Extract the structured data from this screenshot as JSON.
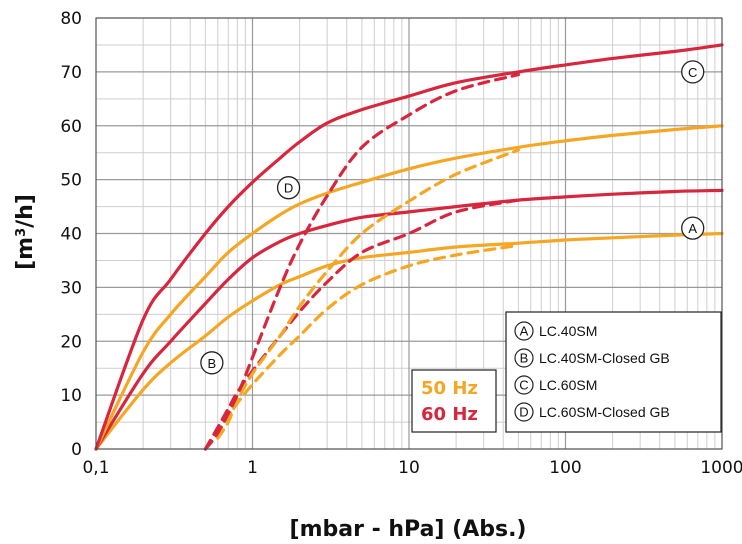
{
  "chart_data": {
    "type": "line",
    "xscale": "log",
    "xlim": [
      0.1,
      1000
    ],
    "ylim": [
      0,
      80
    ],
    "grid": true,
    "xlabel": "[mbar - hPa] (Abs.)",
    "ylabel": "[m3/h]",
    "ylabel_main": "[m",
    "ylabel_sup": "3",
    "ylabel_tail": "/h]",
    "xticks": [
      0.1,
      1,
      10,
      100,
      1000
    ],
    "xtick_labels": [
      "0,1",
      "1",
      "10",
      "100",
      "1000"
    ],
    "yticks": [
      0,
      10,
      20,
      30,
      40,
      50,
      60,
      70,
      80
    ],
    "ytick_labels": [
      "0",
      "10",
      "20",
      "30",
      "40",
      "50",
      "60",
      "70",
      "80"
    ],
    "colors": {
      "50 Hz": "#F5A623",
      "60 Hz": "#D7263D"
    },
    "series": [
      {
        "marker": "A",
        "frequency": "50 Hz",
        "style": "solid",
        "points": [
          [
            0.1,
            0
          ],
          [
            0.2,
            11
          ],
          [
            0.3,
            16
          ],
          [
            0.5,
            21
          ],
          [
            0.7,
            24.5
          ],
          [
            1,
            27.5
          ],
          [
            1.5,
            30.5
          ],
          [
            2,
            32
          ],
          [
            3,
            34
          ],
          [
            5,
            35.5
          ],
          [
            10,
            36.5
          ],
          [
            20,
            37.5
          ],
          [
            50,
            38.2
          ],
          [
            100,
            38.8
          ],
          [
            200,
            39.2
          ],
          [
            500,
            39.7
          ],
          [
            1000,
            40
          ]
        ]
      },
      {
        "marker": "A",
        "frequency": "60 Hz",
        "style": "solid",
        "points": [
          [
            0.1,
            0
          ],
          [
            0.2,
            14
          ],
          [
            0.3,
            20
          ],
          [
            0.5,
            27
          ],
          [
            0.7,
            31.5
          ],
          [
            1,
            35.5
          ],
          [
            1.5,
            38.5
          ],
          [
            2,
            40
          ],
          [
            3,
            41.5
          ],
          [
            5,
            43
          ],
          [
            10,
            44
          ],
          [
            20,
            45
          ],
          [
            50,
            46.2
          ],
          [
            100,
            46.8
          ],
          [
            200,
            47.3
          ],
          [
            500,
            47.8
          ],
          [
            1000,
            48
          ]
        ]
      },
      {
        "marker": "B",
        "frequency": "50 Hz",
        "style": "dashed",
        "points": [
          [
            0.5,
            0
          ],
          [
            0.6,
            3
          ],
          [
            0.7,
            6
          ],
          [
            0.8,
            8.5
          ],
          [
            1,
            12
          ],
          [
            1.5,
            17.5
          ],
          [
            2,
            21
          ],
          [
            3,
            26
          ],
          [
            5,
            30.5
          ],
          [
            10,
            34
          ],
          [
            20,
            36
          ],
          [
            50,
            37.8
          ]
        ]
      },
      {
        "marker": "B",
        "frequency": "60 Hz",
        "style": "dashed",
        "points": [
          [
            0.5,
            0
          ],
          [
            0.6,
            4
          ],
          [
            0.7,
            7.5
          ],
          [
            0.8,
            10.5
          ],
          [
            1,
            14.5
          ],
          [
            1.5,
            21
          ],
          [
            2,
            25.5
          ],
          [
            3,
            31
          ],
          [
            5,
            36.5
          ],
          [
            10,
            40
          ],
          [
            20,
            44
          ],
          [
            50,
            46.2
          ]
        ]
      },
      {
        "marker": "C",
        "frequency": "50 Hz",
        "style": "solid",
        "points": [
          [
            0.1,
            0
          ],
          [
            0.2,
            18
          ],
          [
            0.3,
            25
          ],
          [
            0.5,
            32
          ],
          [
            0.7,
            36.5
          ],
          [
            1,
            40
          ],
          [
            1.5,
            43.5
          ],
          [
            2,
            45.5
          ],
          [
            3,
            47.5
          ],
          [
            5,
            49.5
          ],
          [
            10,
            52
          ],
          [
            20,
            54
          ],
          [
            50,
            56
          ],
          [
            100,
            57.2
          ],
          [
            200,
            58.2
          ],
          [
            500,
            59.3
          ],
          [
            1000,
            60
          ]
        ]
      },
      {
        "marker": "C",
        "frequency": "60 Hz",
        "style": "solid",
        "points": [
          [
            0.1,
            0
          ],
          [
            0.2,
            24
          ],
          [
            0.3,
            31.5
          ],
          [
            0.5,
            40
          ],
          [
            0.7,
            45
          ],
          [
            1,
            49.5
          ],
          [
            1.5,
            54
          ],
          [
            2,
            57
          ],
          [
            3,
            60.5
          ],
          [
            5,
            63
          ],
          [
            10,
            65.5
          ],
          [
            20,
            68
          ],
          [
            50,
            70
          ],
          [
            100,
            71.3
          ],
          [
            200,
            72.5
          ],
          [
            500,
            73.8
          ],
          [
            1000,
            75
          ]
        ]
      },
      {
        "marker": "D",
        "frequency": "50 Hz",
        "style": "dashed",
        "points": [
          [
            0.6,
            2
          ],
          [
            0.7,
            5
          ],
          [
            0.8,
            9
          ],
          [
            1,
            14
          ],
          [
            1.5,
            21
          ],
          [
            2,
            26.5
          ],
          [
            3,
            33
          ],
          [
            5,
            40
          ],
          [
            10,
            46
          ],
          [
            20,
            51
          ],
          [
            50,
            55.5
          ]
        ]
      },
      {
        "marker": "D",
        "frequency": "60 Hz",
        "style": "dashed",
        "points": [
          [
            0.5,
            0
          ],
          [
            0.6,
            3
          ],
          [
            0.8,
            10
          ],
          [
            1,
            17
          ],
          [
            1.5,
            30
          ],
          [
            2,
            38
          ],
          [
            3,
            47
          ],
          [
            5,
            56
          ],
          [
            10,
            62
          ],
          [
            20,
            66.5
          ],
          [
            50,
            69.5
          ]
        ]
      }
    ],
    "curve_markers": [
      {
        "letter": "A",
        "x": 650,
        "y": 41
      },
      {
        "letter": "B",
        "x": 0.55,
        "y": 16
      },
      {
        "letter": "C",
        "x": 650,
        "y": 70
      },
      {
        "letter": "D",
        "x": 1.7,
        "y": 48.5
      }
    ],
    "legend": {
      "placement": "bottom-right",
      "entries": [
        {
          "letter": "A",
          "label": "LC.40SM"
        },
        {
          "letter": "B",
          "label": "LC.40SM-Closed GB"
        },
        {
          "letter": "C",
          "label": "LC.60SM"
        },
        {
          "letter": "D",
          "label": "LC.60SM-Closed GB"
        }
      ]
    },
    "frequency_legend": [
      "50 Hz",
      "60 Hz"
    ]
  }
}
